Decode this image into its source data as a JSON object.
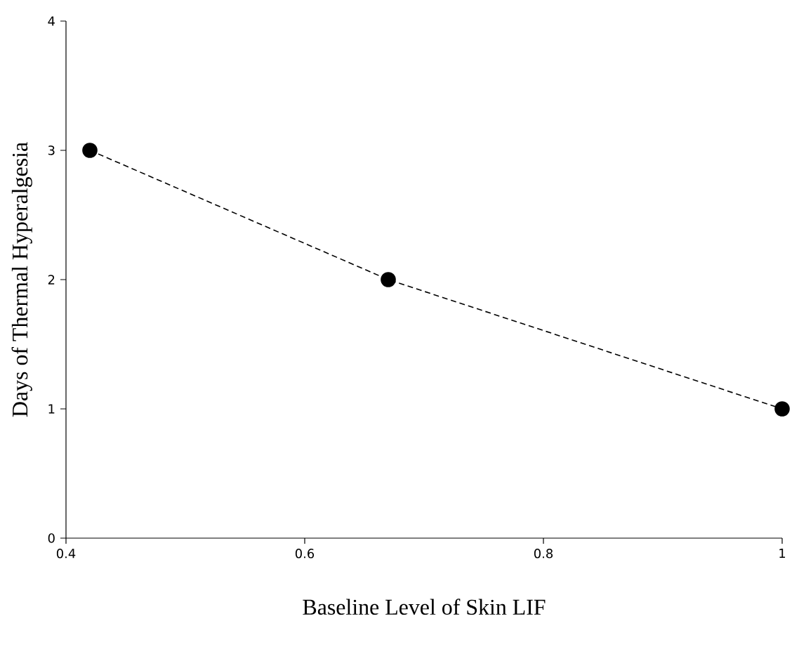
{
  "chart_data": {
    "type": "line",
    "xlabel": "Baseline Level of Skin LIF",
    "ylabel": "Days of Thermal Hyperalgesia",
    "x": [
      0.42,
      0.67,
      1
    ],
    "series": [
      {
        "color": "#000000",
        "values": [
          3,
          2,
          1
        ]
      }
    ],
    "xlim": [
      0.4,
      1
    ],
    "ylim": [
      0,
      4
    ],
    "xticks": [
      0.4,
      0.6,
      0.8,
      1
    ],
    "yticks": [
      0,
      1,
      2,
      3,
      4
    ],
    "marker": "circle",
    "line_style": "dashed"
  }
}
